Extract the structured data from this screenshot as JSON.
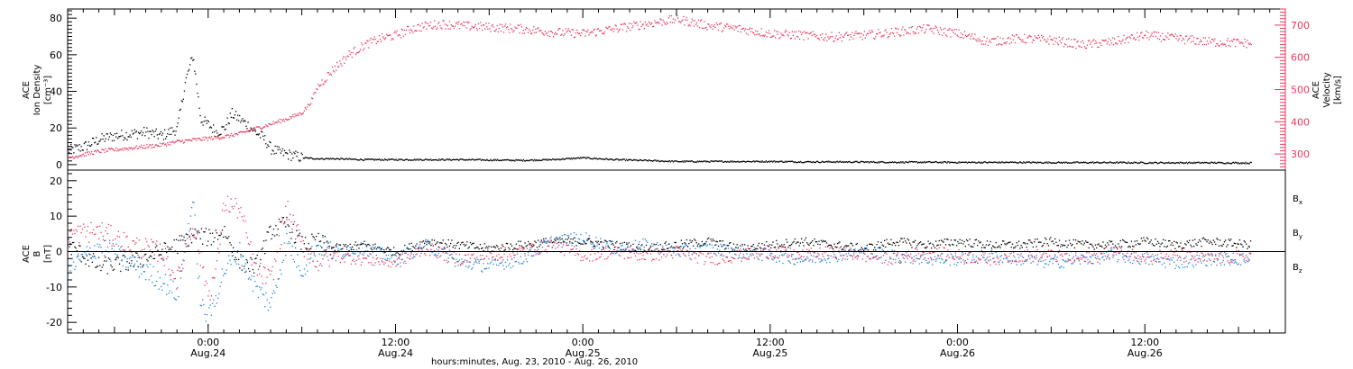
{
  "colors": {
    "density": "#000000",
    "velocity": "#e8395e",
    "bx": "#000000",
    "by": "#1a86e0",
    "bz": "#e8395e",
    "axis": "#000000"
  },
  "chart_data": [
    {
      "type": "scatter",
      "panel": "ace-density-velocity",
      "left_axis": {
        "label_lines": [
          "ACE",
          "Ion Density",
          "[cm⁻³]"
        ],
        "ylim": [
          -3,
          85
        ],
        "ticks": [
          "0",
          "20",
          "40",
          "60",
          "80"
        ]
      },
      "right_axis": {
        "label_lines": [
          "ACE",
          "Velocity",
          "[km/s]"
        ],
        "ylim": [
          250,
          750
        ],
        "ticks": [
          "300",
          "400",
          "500",
          "600",
          "700"
        ]
      },
      "xlim_hours": [
        -9,
        69
      ],
      "series": [
        {
          "role": "density",
          "color": "#000000",
          "x": [
            -9,
            -8,
            -7,
            -6,
            -5,
            -4,
            -3,
            -2,
            -1.5,
            -1,
            -0.5,
            0,
            0.5,
            1,
            1.5,
            2,
            2.5,
            3,
            3.5,
            4,
            4.5,
            5,
            5.5,
            6,
            7,
            8,
            10,
            12,
            14,
            16,
            18,
            20,
            22,
            24,
            26,
            28,
            30,
            32,
            34,
            36,
            38,
            40,
            42,
            44,
            46,
            48,
            50,
            52,
            54,
            56,
            58,
            60,
            62,
            64,
            66.8
          ],
          "y": [
            8,
            10,
            14,
            16,
            17,
            18,
            16,
            20,
            45,
            60,
            25,
            22,
            18,
            20,
            28,
            25,
            22,
            18,
            15,
            9,
            7,
            6,
            5,
            4,
            3.5,
            3.5,
            3,
            3,
            3,
            3,
            2.8,
            2.6,
            3,
            4,
            3,
            2.5,
            2,
            2,
            2,
            2,
            1.8,
            1.8,
            1.7,
            1.6,
            1.6,
            1.5,
            1.5,
            1.5,
            1.4,
            1.4,
            1.4,
            1.3,
            1.3,
            1.3,
            1.2
          ]
        },
        {
          "role": "velocity",
          "color": "#e8395e",
          "x": [
            -9,
            -8,
            -7,
            -6,
            -5,
            -4,
            -3,
            -2,
            -1,
            0,
            1,
            2,
            3,
            4,
            5,
            6,
            6.5,
            7,
            8,
            9,
            10,
            11,
            12,
            13,
            14,
            15,
            16,
            18,
            20,
            22,
            24,
            26,
            28,
            30,
            32,
            34,
            36,
            38,
            40,
            42,
            44,
            46,
            48,
            50,
            52,
            54,
            56,
            58,
            60,
            62,
            64,
            66.8
          ],
          "y": [
            290,
            300,
            310,
            315,
            320,
            325,
            330,
            340,
            345,
            350,
            355,
            365,
            380,
            395,
            410,
            430,
            460,
            510,
            565,
            610,
            640,
            660,
            670,
            690,
            700,
            705,
            700,
            695,
            690,
            680,
            675,
            690,
            705,
            720,
            700,
            690,
            675,
            670,
            665,
            670,
            680,
            690,
            675,
            650,
            660,
            655,
            640,
            650,
            670,
            660,
            650,
            645
          ]
        }
      ]
    },
    {
      "type": "scatter",
      "panel": "ace-imf",
      "left_axis": {
        "label_lines": [
          "ACE",
          "B",
          "[nT]"
        ],
        "ylim": [
          -23,
          23
        ],
        "ticks": [
          "20",
          "10",
          "0",
          "-10",
          "-20"
        ]
      },
      "xlim_hours": [
        -9,
        69
      ],
      "series": [
        {
          "name": "Bx",
          "color": "#000000",
          "x": [
            -9,
            -7,
            -5,
            -3,
            -2,
            -1,
            0,
            1,
            2,
            3,
            4,
            5,
            6,
            7,
            8,
            10,
            12,
            14,
            16,
            18,
            20,
            22,
            24,
            26,
            28,
            30,
            32,
            34,
            36,
            38,
            40,
            42,
            44,
            46,
            48,
            50,
            52,
            54,
            56,
            58,
            60,
            62,
            64,
            66.8
          ],
          "y": [
            2,
            -4,
            -3,
            0,
            2,
            5,
            4,
            6,
            -3,
            -4,
            6,
            8,
            2,
            3,
            1,
            2,
            0,
            3,
            2,
            1,
            2,
            3,
            3,
            2,
            1,
            2,
            3,
            1,
            2,
            3,
            2,
            1,
            3,
            2,
            3,
            2,
            2,
            3,
            2,
            2,
            3,
            2,
            3,
            2
          ]
        },
        {
          "name": "By",
          "color": "#1a86e0",
          "x": [
            -9,
            -7,
            -5,
            -3,
            -2,
            -1,
            -0.5,
            0,
            1,
            2,
            3,
            4,
            5,
            6,
            7,
            8,
            10,
            12,
            14,
            16,
            18,
            20,
            22,
            24,
            26,
            28,
            30,
            32,
            34,
            36,
            38,
            40,
            42,
            44,
            46,
            48,
            50,
            52,
            54,
            56,
            58,
            60,
            62,
            64,
            66.8
          ],
          "y": [
            -5,
            2,
            -3,
            -8,
            -12,
            15,
            -15,
            -19,
            -5,
            0,
            -10,
            -15,
            3,
            -5,
            2,
            0,
            1,
            -2,
            2,
            -3,
            -4,
            -2,
            3,
            4,
            1,
            2,
            0,
            1,
            0,
            -1,
            -2,
            -1,
            0,
            -1,
            -2,
            -2,
            -1,
            -2,
            -3,
            -2,
            -1,
            -2,
            -3,
            -2,
            -2
          ]
        },
        {
          "name": "Bz",
          "color": "#e8395e",
          "x": [
            -9,
            -7,
            -5,
            -3,
            -2,
            -1,
            0,
            0.5,
            1,
            2,
            3,
            4,
            5,
            6,
            7,
            8,
            10,
            12,
            14,
            16,
            18,
            20,
            22,
            24,
            26,
            28,
            30,
            32,
            34,
            36,
            38,
            40,
            42,
            44,
            46,
            48,
            50,
            52,
            54,
            56,
            58,
            60,
            62,
            64,
            66.8
          ],
          "y": [
            5,
            6,
            2,
            0,
            -8,
            8,
            -12,
            -5,
            14,
            12,
            -5,
            -8,
            12,
            2,
            -3,
            -1,
            -2,
            -3,
            1,
            -2,
            -1,
            0,
            2,
            -1,
            0,
            -1,
            0,
            -2,
            -1,
            0,
            -1,
            0,
            -1,
            -2,
            0,
            -1,
            -2,
            -1,
            -1,
            -2,
            0,
            -1,
            -1,
            -2,
            -1
          ]
        }
      ]
    }
  ],
  "x_axis": {
    "ticks": [
      {
        "time": "0:00",
        "date": "Aug.24"
      },
      {
        "time": "12:00",
        "date": "Aug.24"
      },
      {
        "time": "0:00",
        "date": "Aug.25"
      },
      {
        "time": "12:00",
        "date": "Aug.25"
      },
      {
        "time": "0:00",
        "date": "Aug.26"
      },
      {
        "time": "12:00",
        "date": "Aug.26"
      }
    ],
    "tick_hours": [
      0,
      12,
      24,
      36,
      48,
      60
    ],
    "label": "hours:minutes, Aug. 23, 2010 - Aug. 26, 2010"
  },
  "legend": [
    {
      "text": "B",
      "sub": "x",
      "color": "#000000"
    },
    {
      "text": "B",
      "sub": "y",
      "color": "#1a86e0"
    },
    {
      "text": "B",
      "sub": "z",
      "color": "#e8395e"
    }
  ]
}
